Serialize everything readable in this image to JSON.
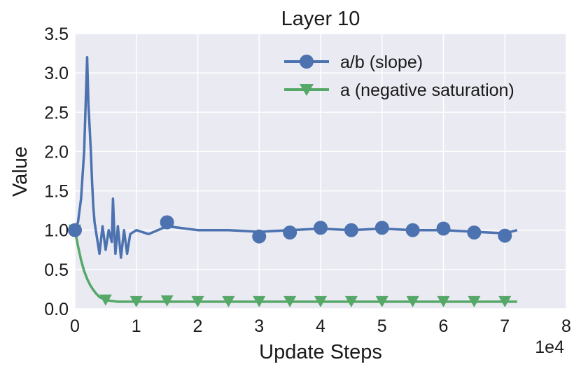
{
  "chart_data": {
    "type": "line",
    "title": "Layer 10",
    "xlabel": "Update Steps",
    "ylabel": "Value",
    "x_offset_label": "1e4",
    "xlim": [
      0,
      8
    ],
    "ylim": [
      0,
      3.5
    ],
    "x_ticks": [
      "0",
      "1",
      "2",
      "3",
      "4",
      "5",
      "6",
      "7",
      "8"
    ],
    "y_ticks": [
      "0.0",
      "0.5",
      "1.0",
      "1.5",
      "2.0",
      "2.5",
      "3.0",
      "3.5"
    ],
    "grid": true,
    "legend_position": "top-right",
    "background": "#eaeaf2",
    "series": [
      {
        "name": "a/b (slope)",
        "color": "#4c72b0",
        "marker": "circle",
        "x": [
          0,
          0.05,
          0.1,
          0.15,
          0.2,
          0.22,
          0.24,
          0.26,
          0.28,
          0.3,
          0.32,
          0.35,
          0.4,
          0.45,
          0.5,
          0.55,
          0.6,
          0.62,
          0.64,
          0.66,
          0.7,
          0.75,
          0.8,
          0.85,
          0.9,
          1.0,
          1.2,
          1.5,
          2.0,
          2.5,
          3.0,
          3.5,
          4.0,
          4.5,
          5.0,
          5.5,
          6.0,
          6.5,
          7.0,
          7.2
        ],
        "y": [
          1.0,
          1.1,
          1.4,
          2.0,
          3.2,
          2.6,
          2.3,
          2.0,
          1.6,
          1.3,
          1.1,
          0.95,
          0.7,
          1.05,
          0.75,
          1.0,
          0.85,
          1.4,
          1.0,
          0.7,
          1.05,
          0.65,
          1.0,
          0.7,
          0.95,
          1.0,
          0.95,
          1.05,
          1.0,
          1.0,
          0.98,
          1.0,
          1.02,
          1.0,
          1.02,
          1.0,
          1.0,
          0.98,
          0.96,
          1.0
        ],
        "marker_x": [
          0,
          1.5,
          3.0,
          3.5,
          4.0,
          4.5,
          5.0,
          5.5,
          6.0,
          6.5,
          7.0
        ],
        "marker_y": [
          1.0,
          1.1,
          0.92,
          0.97,
          1.03,
          1.0,
          1.03,
          1.0,
          1.02,
          0.97,
          0.93
        ]
      },
      {
        "name": "a (negative saturation)",
        "color": "#55a868",
        "marker": "triangle-down",
        "x": [
          0,
          0.05,
          0.1,
          0.15,
          0.2,
          0.25,
          0.3,
          0.35,
          0.4,
          0.45,
          0.5,
          0.6,
          0.7,
          0.8,
          1.0,
          2.0,
          3.0,
          4.0,
          5.0,
          6.0,
          7.0,
          7.2
        ],
        "y": [
          1.0,
          0.8,
          0.62,
          0.48,
          0.38,
          0.3,
          0.24,
          0.19,
          0.15,
          0.13,
          0.11,
          0.1,
          0.09,
          0.09,
          0.09,
          0.09,
          0.09,
          0.09,
          0.09,
          0.09,
          0.09,
          0.09
        ],
        "marker_x": [
          0,
          0.5,
          1.0,
          1.5,
          2.0,
          2.5,
          3.0,
          3.5,
          4.0,
          4.5,
          5.0,
          5.5,
          6.0,
          6.5,
          7.0
        ],
        "marker_y": [
          1.0,
          0.11,
          0.09,
          0.1,
          0.09,
          0.09,
          0.09,
          0.09,
          0.09,
          0.09,
          0.09,
          0.09,
          0.09,
          0.09,
          0.09
        ]
      }
    ]
  }
}
